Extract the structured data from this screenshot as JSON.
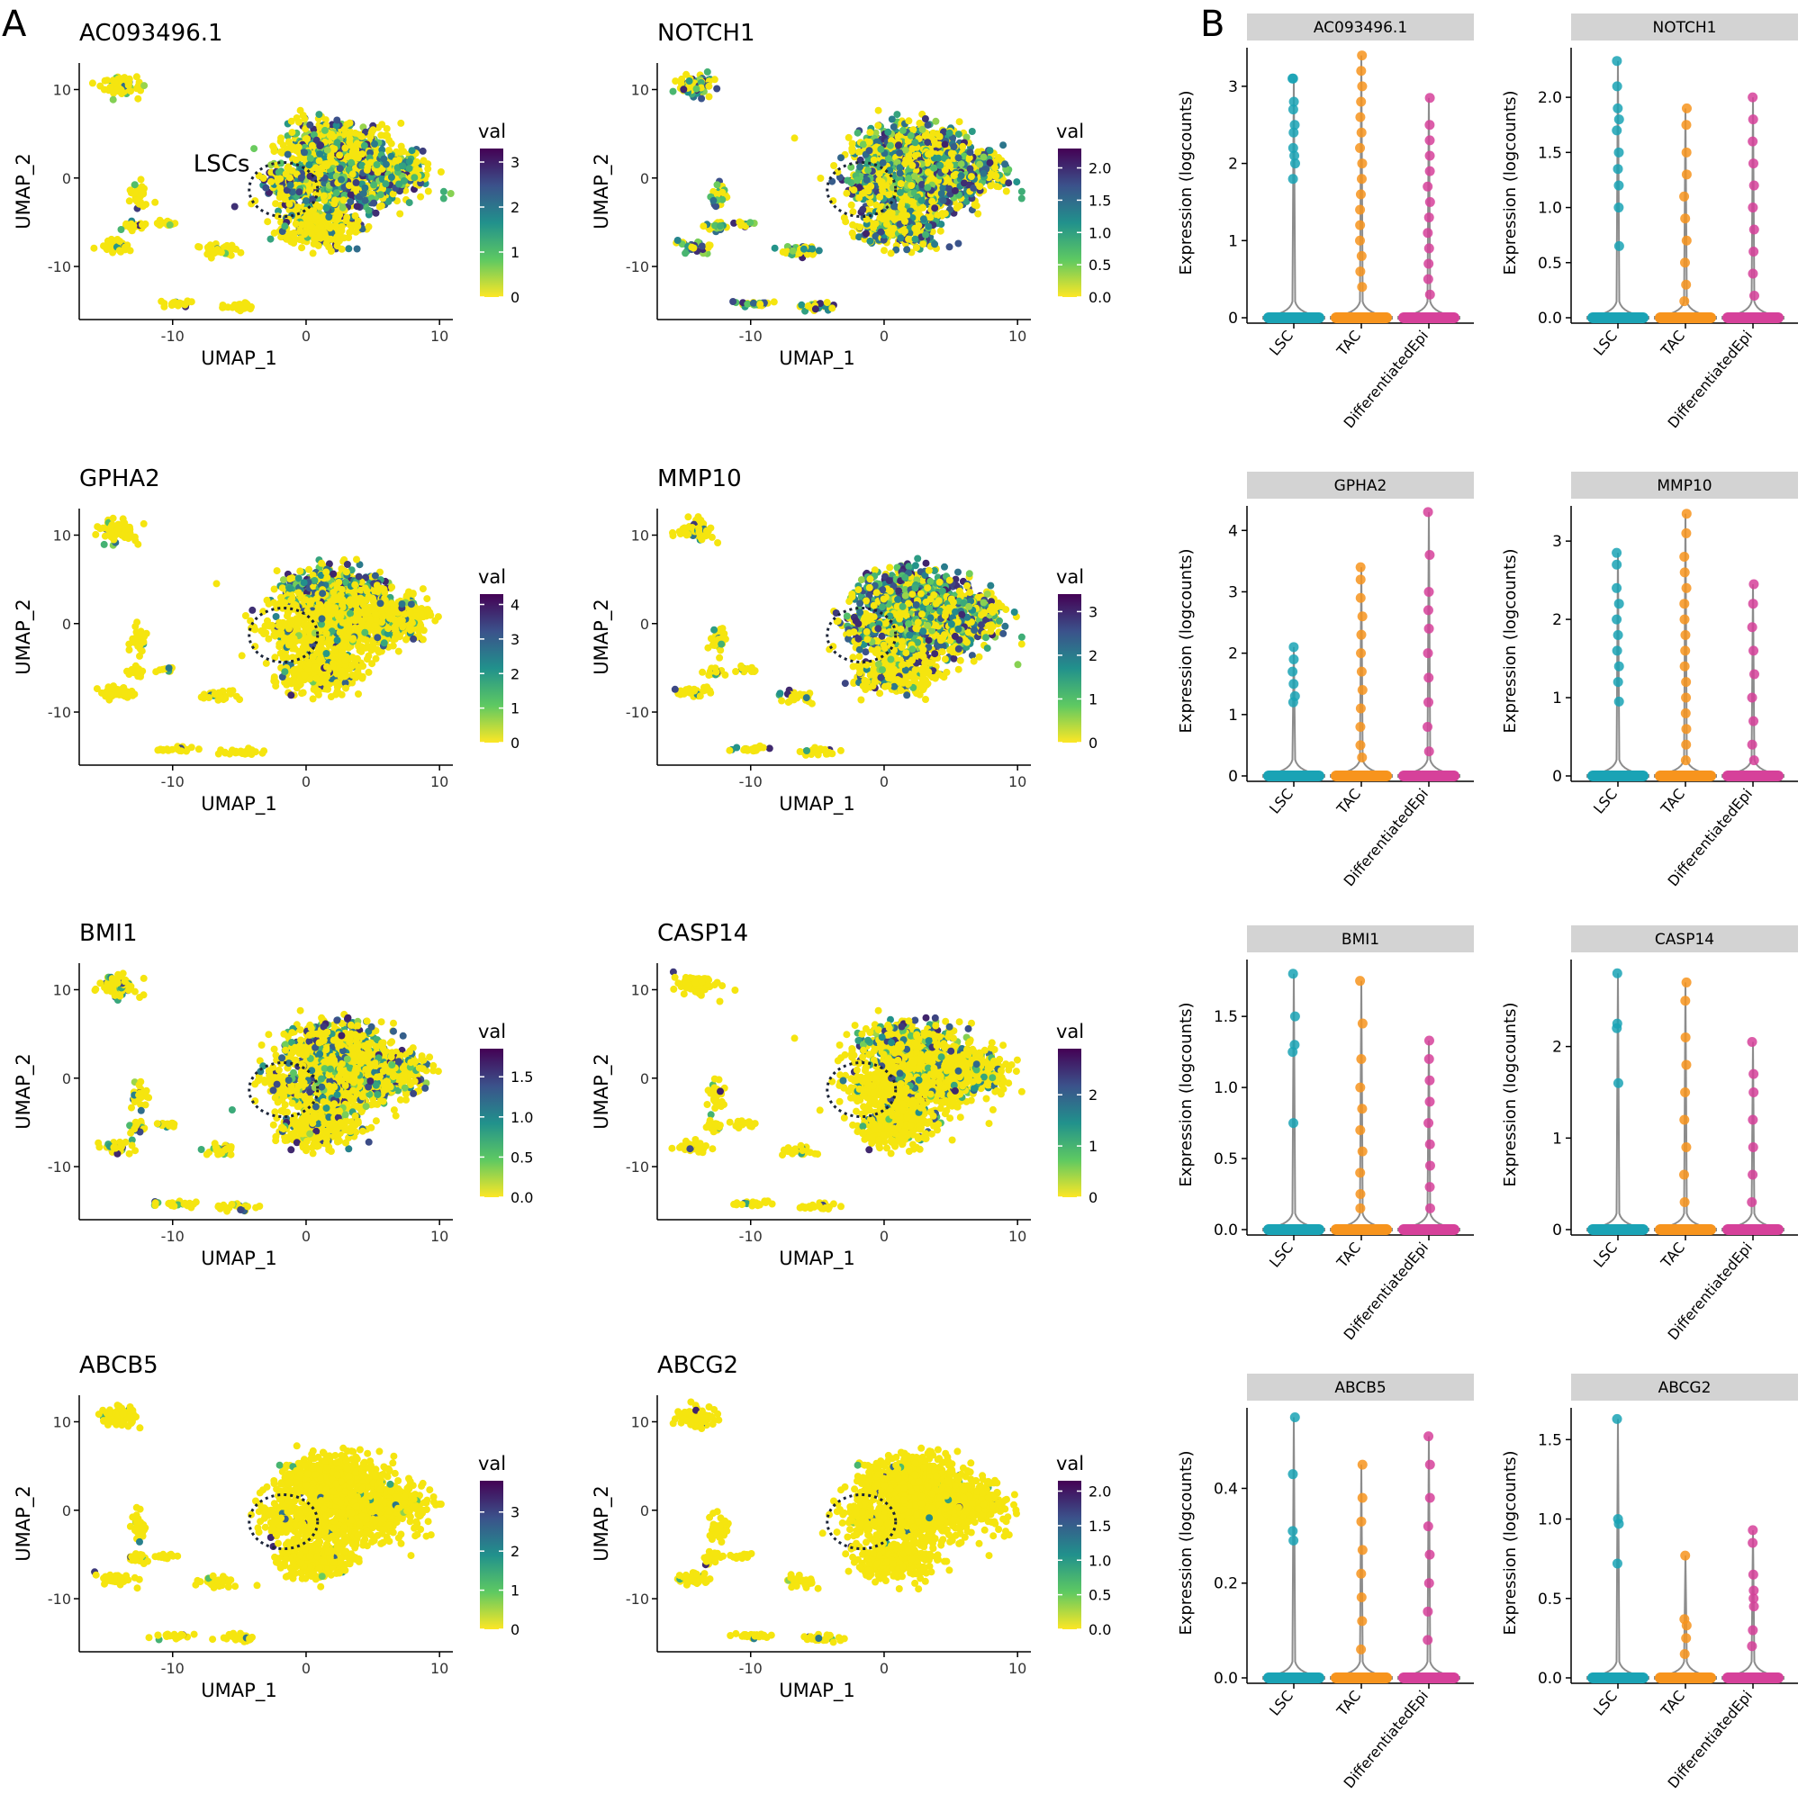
{
  "figure": {
    "panel_labels": [
      "A",
      "B"
    ],
    "umap_xlabel": "UMAP_1",
    "umap_ylabel": "UMAP_2",
    "umap_xticks": [
      -10,
      0,
      10
    ],
    "umap_yticks": [
      10,
      0,
      -10
    ],
    "legend_title": "val",
    "lsc_annotation": "LSCs",
    "violin_ylabel": "Expression (logcounts)",
    "violin_groups": [
      "LSC",
      "TAC",
      "DifferentiatedEpi"
    ]
  },
  "colors": {
    "lsc": "#1aa3b5",
    "tac": "#f7941d",
    "differentiated_epi": "#d6419a",
    "strip_bg": "#d3d3d3",
    "violin_outline": "#8c8c8c",
    "low_expression": "#f5e50f",
    "high_expression": "#460a5d"
  },
  "chart_data": [
    {
      "type": "scatter",
      "title": "AC093496.1",
      "xlabel": "UMAP_1",
      "ylabel": "UMAP_2",
      "xlim": [
        -17,
        11
      ],
      "ylim": [
        -16,
        13
      ],
      "legend_title": "val",
      "color_scale": "viridis",
      "color_range": [
        0,
        3.3
      ],
      "legend_ticks": [
        3,
        2,
        1,
        0
      ],
      "legend_tick_labels": [
        "3",
        "2",
        "1",
        "0"
      ],
      "annotation": "LSCs",
      "expr": {
        "main": 0.55,
        "top": 0.4,
        "bottom": 0.2,
        "islands": 0.1
      }
    },
    {
      "type": "scatter",
      "title": "NOTCH1",
      "xlabel": "UMAP_1",
      "ylabel": "UMAP_2",
      "xlim": [
        -17,
        11
      ],
      "ylim": [
        -16,
        13
      ],
      "legend_title": "val",
      "color_scale": "viridis",
      "color_range": [
        0,
        2.3
      ],
      "legend_ticks": [
        2,
        1.5,
        1,
        0.5,
        0
      ],
      "legend_tick_labels": [
        "2.0",
        "1.5",
        "1.0",
        "0.5",
        "0.0"
      ],
      "expr": {
        "main": 0.6,
        "top": 0.5,
        "bottom": 0.4,
        "islands": 0.6
      }
    },
    {
      "type": "scatter",
      "title": "GPHA2",
      "xlabel": "UMAP_1",
      "ylabel": "UMAP_2",
      "xlim": [
        -17,
        11
      ],
      "ylim": [
        -16,
        13
      ],
      "legend_title": "val",
      "color_scale": "viridis",
      "color_range": [
        0,
        4.3
      ],
      "legend_ticks": [
        4,
        3,
        2,
        1,
        0
      ],
      "legend_tick_labels": [
        "4",
        "3",
        "2",
        "1",
        "0"
      ],
      "expr": {
        "main": 0.15,
        "top": 0.55,
        "bottom": 0.08,
        "islands": 0.05
      }
    },
    {
      "type": "scatter",
      "title": "MMP10",
      "xlabel": "UMAP_1",
      "ylabel": "UMAP_2",
      "xlim": [
        -17,
        11
      ],
      "ylim": [
        -16,
        13
      ],
      "legend_title": "val",
      "color_scale": "viridis",
      "color_range": [
        0,
        3.4
      ],
      "legend_ticks": [
        3,
        2,
        1,
        0
      ],
      "legend_tick_labels": [
        "3",
        "2",
        "1",
        "0"
      ],
      "expr": {
        "main": 0.5,
        "top": 0.8,
        "bottom": 0.25,
        "islands": 0.12
      }
    },
    {
      "type": "scatter",
      "title": "BMI1",
      "xlabel": "UMAP_1",
      "ylabel": "UMAP_2",
      "xlim": [
        -17,
        11
      ],
      "ylim": [
        -16,
        13
      ],
      "legend_title": "val",
      "color_scale": "viridis",
      "color_range": [
        0,
        1.85
      ],
      "legend_ticks": [
        1.5,
        1,
        0.5,
        0
      ],
      "legend_tick_labels": [
        "1.5",
        "1.0",
        "0.5",
        "0.0"
      ],
      "expr": {
        "main": 0.3,
        "top": 0.3,
        "bottom": 0.15,
        "islands": 0.2
      }
    },
    {
      "type": "scatter",
      "title": "CASP14",
      "xlabel": "UMAP_1",
      "ylabel": "UMAP_2",
      "xlim": [
        -17,
        11
      ],
      "ylim": [
        -16,
        13
      ],
      "legend_title": "val",
      "color_scale": "viridis",
      "color_range": [
        0,
        2.9
      ],
      "legend_ticks": [
        2,
        1,
        0
      ],
      "legend_tick_labels": [
        "2",
        "1",
        "0"
      ],
      "expr": {
        "main": 0.18,
        "top": 0.35,
        "bottom": 0.05,
        "islands": 0.05
      }
    },
    {
      "type": "scatter",
      "title": "ABCB5",
      "xlabel": "UMAP_1",
      "ylabel": "UMAP_2",
      "xlim": [
        -17,
        11
      ],
      "ylim": [
        -16,
        13
      ],
      "legend_title": "val",
      "color_scale": "viridis",
      "color_range": [
        0,
        3.8
      ],
      "legend_ticks": [
        3,
        2,
        1,
        0
      ],
      "legend_tick_labels": [
        "3",
        "2",
        "1",
        "0"
      ],
      "expr": {
        "main": 0.02,
        "top": 0.02,
        "bottom": 0.02,
        "islands": 0.05
      }
    },
    {
      "type": "scatter",
      "title": "ABCG2",
      "xlabel": "UMAP_1",
      "ylabel": "UMAP_2",
      "xlim": [
        -17,
        11
      ],
      "ylim": [
        -16,
        13
      ],
      "legend_title": "val",
      "color_scale": "viridis",
      "color_range": [
        0,
        2.15
      ],
      "legend_ticks": [
        2,
        1.5,
        1,
        0.5,
        0
      ],
      "legend_tick_labels": [
        "2.0",
        "1.5",
        "1.0",
        "0.5",
        "0.0"
      ],
      "expr": {
        "main": 0.02,
        "top": 0.02,
        "bottom": 0.01,
        "islands": 0.04
      }
    },
    {
      "type": "violin",
      "title": "AC093496.1",
      "ylabel": "Expression (logcounts)",
      "categories": [
        "LSC",
        "TAC",
        "DifferentiatedEpi"
      ],
      "ylim": [
        0,
        3.5
      ],
      "yticks": [
        0,
        1,
        2,
        3
      ],
      "ytick_labels": [
        "0",
        "1",
        "2",
        "3"
      ],
      "series": [
        {
          "name": "LSC",
          "values": [
            3.1,
            3.1,
            2.8,
            2.7,
            2.5,
            2.4,
            2.2,
            2.1,
            2.0,
            1.8
          ]
        },
        {
          "name": "TAC",
          "values": [
            3.4,
            3.2,
            3.0,
            2.8,
            2.6,
            2.4,
            2.2,
            2.0,
            1.8,
            1.6,
            1.4,
            1.2,
            1.0,
            0.8,
            0.6,
            0.4
          ]
        },
        {
          "name": "DifferentiatedEpi",
          "values": [
            2.85,
            2.5,
            2.3,
            2.1,
            1.9,
            1.7,
            1.5,
            1.3,
            1.1,
            0.9,
            0.7,
            0.5,
            0.3
          ]
        }
      ]
    },
    {
      "type": "violin",
      "title": "NOTCH1",
      "ylabel": "Expression (logcounts)",
      "categories": [
        "LSC",
        "TAC",
        "DifferentiatedEpi"
      ],
      "ylim": [
        0,
        2.45
      ],
      "yticks": [
        0,
        0.5,
        1,
        1.5,
        2
      ],
      "ytick_labels": [
        "0.0",
        "0.5",
        "1.0",
        "1.5",
        "2.0"
      ],
      "series": [
        {
          "name": "LSC",
          "values": [
            2.33,
            2.1,
            1.9,
            1.8,
            1.7,
            1.5,
            1.35,
            1.2,
            1.0,
            0.65
          ]
        },
        {
          "name": "TAC",
          "values": [
            1.9,
            1.75,
            1.5,
            1.3,
            1.1,
            0.9,
            0.7,
            0.5,
            0.3,
            0.15
          ]
        },
        {
          "name": "DifferentiatedEpi",
          "values": [
            2.0,
            1.8,
            1.6,
            1.4,
            1.2,
            1.0,
            0.8,
            0.6,
            0.4,
            0.2
          ]
        }
      ]
    },
    {
      "type": "violin",
      "title": "GPHA2",
      "ylabel": "Expression (logcounts)",
      "categories": [
        "LSC",
        "TAC",
        "DifferentiatedEpi"
      ],
      "ylim": [
        0,
        4.4
      ],
      "yticks": [
        0,
        1,
        2,
        3,
        4
      ],
      "ytick_labels": [
        "0",
        "1",
        "2",
        "3",
        "4"
      ],
      "series": [
        {
          "name": "LSC",
          "values": [
            2.1,
            1.9,
            1.7,
            1.5,
            1.3,
            1.2
          ]
        },
        {
          "name": "TAC",
          "values": [
            3.4,
            3.2,
            2.9,
            2.6,
            2.3,
            2.0,
            1.7,
            1.4,
            1.1,
            0.8,
            0.5,
            0.3
          ]
        },
        {
          "name": "DifferentiatedEpi",
          "values": [
            4.3,
            3.6,
            3.0,
            2.7,
            2.4,
            2.0,
            1.6,
            1.2,
            0.8,
            0.4
          ]
        }
      ]
    },
    {
      "type": "violin",
      "title": "MMP10",
      "ylabel": "Expression (logcounts)",
      "categories": [
        "LSC",
        "TAC",
        "DifferentiatedEpi"
      ],
      "ylim": [
        0,
        3.45
      ],
      "yticks": [
        0,
        1,
        2,
        3
      ],
      "ytick_labels": [
        "0",
        "1",
        "2",
        "3"
      ],
      "series": [
        {
          "name": "LSC",
          "values": [
            2.85,
            2.7,
            2.4,
            2.2,
            2.0,
            1.8,
            1.6,
            1.4,
            1.2,
            0.95
          ]
        },
        {
          "name": "TAC",
          "values": [
            3.35,
            3.1,
            2.8,
            2.6,
            2.4,
            2.2,
            2.0,
            1.8,
            1.6,
            1.4,
            1.2,
            1.0,
            0.8,
            0.6,
            0.4,
            0.2
          ]
        },
        {
          "name": "DifferentiatedEpi",
          "values": [
            2.45,
            2.2,
            1.9,
            1.6,
            1.3,
            1.0,
            0.7,
            0.4,
            0.2
          ]
        }
      ]
    },
    {
      "type": "violin",
      "title": "BMI1",
      "ylabel": "Expression (logcounts)",
      "categories": [
        "LSC",
        "TAC",
        "DifferentiatedEpi"
      ],
      "ylim": [
        0,
        1.9
      ],
      "yticks": [
        0,
        0.5,
        1,
        1.5
      ],
      "ytick_labels": [
        "0.0",
        "0.5",
        "1.0",
        "1.5"
      ],
      "series": [
        {
          "name": "LSC",
          "values": [
            1.8,
            1.5,
            1.3,
            1.25,
            0.75
          ]
        },
        {
          "name": "TAC",
          "values": [
            1.75,
            1.45,
            1.2,
            1.0,
            0.85,
            0.7,
            0.55,
            0.4,
            0.25,
            0.15
          ]
        },
        {
          "name": "DifferentiatedEpi",
          "values": [
            1.33,
            1.2,
            1.05,
            0.9,
            0.75,
            0.6,
            0.45,
            0.3,
            0.15
          ]
        }
      ]
    },
    {
      "type": "violin",
      "title": "CASP14",
      "ylabel": "Expression (logcounts)",
      "categories": [
        "LSC",
        "TAC",
        "DifferentiatedEpi"
      ],
      "ylim": [
        0,
        2.95
      ],
      "yticks": [
        0,
        1,
        2
      ],
      "ytick_labels": [
        "0",
        "1",
        "2"
      ],
      "series": [
        {
          "name": "LSC",
          "values": [
            2.8,
            2.25,
            2.2,
            1.6
          ]
        },
        {
          "name": "TAC",
          "values": [
            2.7,
            2.5,
            2.1,
            1.8,
            1.5,
            1.2,
            0.9,
            0.6,
            0.3
          ]
        },
        {
          "name": "DifferentiatedEpi",
          "values": [
            2.05,
            1.7,
            1.5,
            1.2,
            0.9,
            0.6,
            0.3
          ]
        }
      ]
    },
    {
      "type": "violin",
      "title": "ABCB5",
      "ylabel": "Expression (logcounts)",
      "categories": [
        "LSC",
        "TAC",
        "DifferentiatedEpi"
      ],
      "ylim": [
        0,
        0.57
      ],
      "yticks": [
        0,
        0.2,
        0.4
      ],
      "ytick_labels": [
        "0.0",
        "0.2",
        "0.4"
      ],
      "series": [
        {
          "name": "LSC",
          "values": [
            0.55,
            0.43,
            0.31,
            0.29
          ]
        },
        {
          "name": "TAC",
          "values": [
            0.45,
            0.38,
            0.33,
            0.27,
            0.22,
            0.17,
            0.12,
            0.06
          ]
        },
        {
          "name": "DifferentiatedEpi",
          "values": [
            0.51,
            0.45,
            0.38,
            0.32,
            0.26,
            0.2,
            0.14,
            0.08
          ]
        }
      ]
    },
    {
      "type": "violin",
      "title": "ABCG2",
      "ylabel": "Expression (logcounts)",
      "categories": [
        "LSC",
        "TAC",
        "DifferentiatedEpi"
      ],
      "ylim": [
        0,
        1.7
      ],
      "yticks": [
        0,
        0.5,
        1,
        1.5
      ],
      "ytick_labels": [
        "0.0",
        "0.5",
        "1.0",
        "1.5"
      ],
      "series": [
        {
          "name": "LSC",
          "values": [
            1.63,
            1.0,
            0.97,
            0.72
          ]
        },
        {
          "name": "TAC",
          "values": [
            0.77,
            0.37,
            0.33,
            0.25,
            0.15
          ]
        },
        {
          "name": "DifferentiatedEpi",
          "values": [
            0.93,
            0.85,
            0.65,
            0.55,
            0.5,
            0.45,
            0.3,
            0.2
          ]
        }
      ]
    }
  ]
}
